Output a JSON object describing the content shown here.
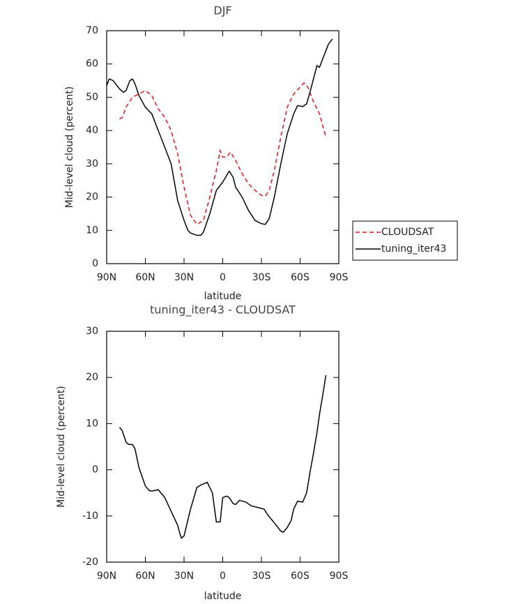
{
  "chart_data": [
    {
      "type": "line",
      "title": "DJF",
      "xlabel": "latitude",
      "ylabel": "Mid-level cloud (percent)",
      "xlim": [
        90,
        -90
      ],
      "xticks": [
        {
          "value": 90,
          "label": "90N"
        },
        {
          "value": 60,
          "label": "60N"
        },
        {
          "value": 30,
          "label": "30N"
        },
        0,
        {
          "value": -30,
          "label": "30S"
        },
        {
          "value": -60,
          "label": "60S"
        },
        {
          "value": -90,
          "label": "90S"
        }
      ],
      "ylim": [
        0,
        70
      ],
      "yticks": [
        0,
        10,
        20,
        30,
        40,
        50,
        60,
        70
      ],
      "legend": "right",
      "series": [
        {
          "name": "CLOUDSAT",
          "color": "#e8141c",
          "style": "dashed",
          "x": [
            80,
            78,
            75,
            70,
            65,
            60,
            55,
            50,
            45,
            40,
            35,
            30,
            25,
            20,
            15,
            10,
            5,
            2,
            0,
            -3,
            -6,
            -10,
            -15,
            -20,
            -25,
            -30,
            -33,
            -36,
            -40,
            -45,
            -50,
            -55,
            -60,
            -63,
            -66,
            -70,
            -75,
            -80
          ],
          "values": [
            43.5,
            43.8,
            47,
            50,
            51,
            52,
            50.5,
            46.5,
            44,
            40,
            33,
            23,
            14.5,
            11.8,
            13,
            20,
            28,
            34,
            32,
            32,
            33.5,
            31,
            27,
            24,
            22,
            20.5,
            20.3,
            22,
            28,
            38,
            47,
            51,
            53,
            54.3,
            53,
            49,
            45,
            38
          ]
        },
        {
          "name": "tuning_iter43",
          "color": "#000000",
          "style": "solid",
          "x": [
            90,
            88,
            85,
            80,
            77,
            75,
            72,
            70,
            68,
            65,
            60,
            55,
            50,
            45,
            40,
            35,
            30,
            27,
            25,
            20,
            17,
            15,
            10,
            5,
            0,
            -3,
            -5,
            -8,
            -10,
            -15,
            -20,
            -25,
            -30,
            -33,
            -36,
            -40,
            -45,
            -50,
            -55,
            -58,
            -62,
            -65,
            -68,
            -70,
            -73,
            -75,
            -78,
            -82,
            -85
          ],
          "values": [
            53.5,
            55.5,
            55,
            52.5,
            51.5,
            52,
            55,
            55.5,
            54,
            50.5,
            47,
            45,
            40,
            35,
            30,
            19,
            13,
            10,
            9.2,
            8.5,
            8.5,
            9.5,
            15,
            22,
            24.5,
            26.5,
            27.8,
            26,
            23,
            20,
            16,
            13,
            12,
            11.8,
            13.5,
            20,
            30,
            39,
            45,
            47.5,
            47.2,
            48,
            52,
            55,
            59.5,
            59,
            62,
            66,
            67.5
          ]
        }
      ]
    },
    {
      "type": "line",
      "title": "tuning_iter43 - CLOUDSAT",
      "xlabel": "latitude",
      "ylabel": "Mid-level cloud (percent)",
      "xlim": [
        90,
        -90
      ],
      "xticks": [
        {
          "value": 90,
          "label": "90N"
        },
        {
          "value": 60,
          "label": "60N"
        },
        {
          "value": 30,
          "label": "30N"
        },
        0,
        {
          "value": -30,
          "label": "30S"
        },
        {
          "value": -60,
          "label": "60S"
        },
        {
          "value": -90,
          "label": "90S"
        }
      ],
      "ylim": [
        -20,
        30
      ],
      "yticks": [
        -20,
        -10,
        0,
        10,
        20,
        30
      ],
      "series": [
        {
          "color": "#000000",
          "style": "solid",
          "x": [
            80,
            78,
            75,
            73,
            70,
            68,
            65,
            60,
            57,
            55,
            50,
            45,
            40,
            35,
            33,
            32,
            30,
            25,
            20,
            17,
            12,
            8,
            5,
            2,
            0,
            -3,
            -5,
            -8,
            -10,
            -13,
            -18,
            -22,
            -25,
            -32,
            -35,
            -40,
            -45,
            -47,
            -50,
            -53,
            -55,
            -58,
            -62,
            -65,
            -68,
            -70,
            -73,
            -75,
            -78,
            -80
          ],
          "values": [
            9.2,
            8.5,
            6,
            5.5,
            5.5,
            4.5,
            0.5,
            -3.5,
            -4.5,
            -4.6,
            -4.3,
            -6,
            -9,
            -12,
            -14,
            -14.8,
            -14.3,
            -8.5,
            -3.8,
            -3.3,
            -2.7,
            -5,
            -11.3,
            -11.3,
            -6,
            -5.7,
            -6,
            -7.3,
            -7.5,
            -6.6,
            -7,
            -7.8,
            -8,
            -8.5,
            -9.8,
            -11.5,
            -13.3,
            -13.5,
            -12.5,
            -11,
            -8.5,
            -6.8,
            -7,
            -5,
            0,
            3,
            8,
            12,
            17,
            20.5
          ]
        }
      ]
    }
  ]
}
